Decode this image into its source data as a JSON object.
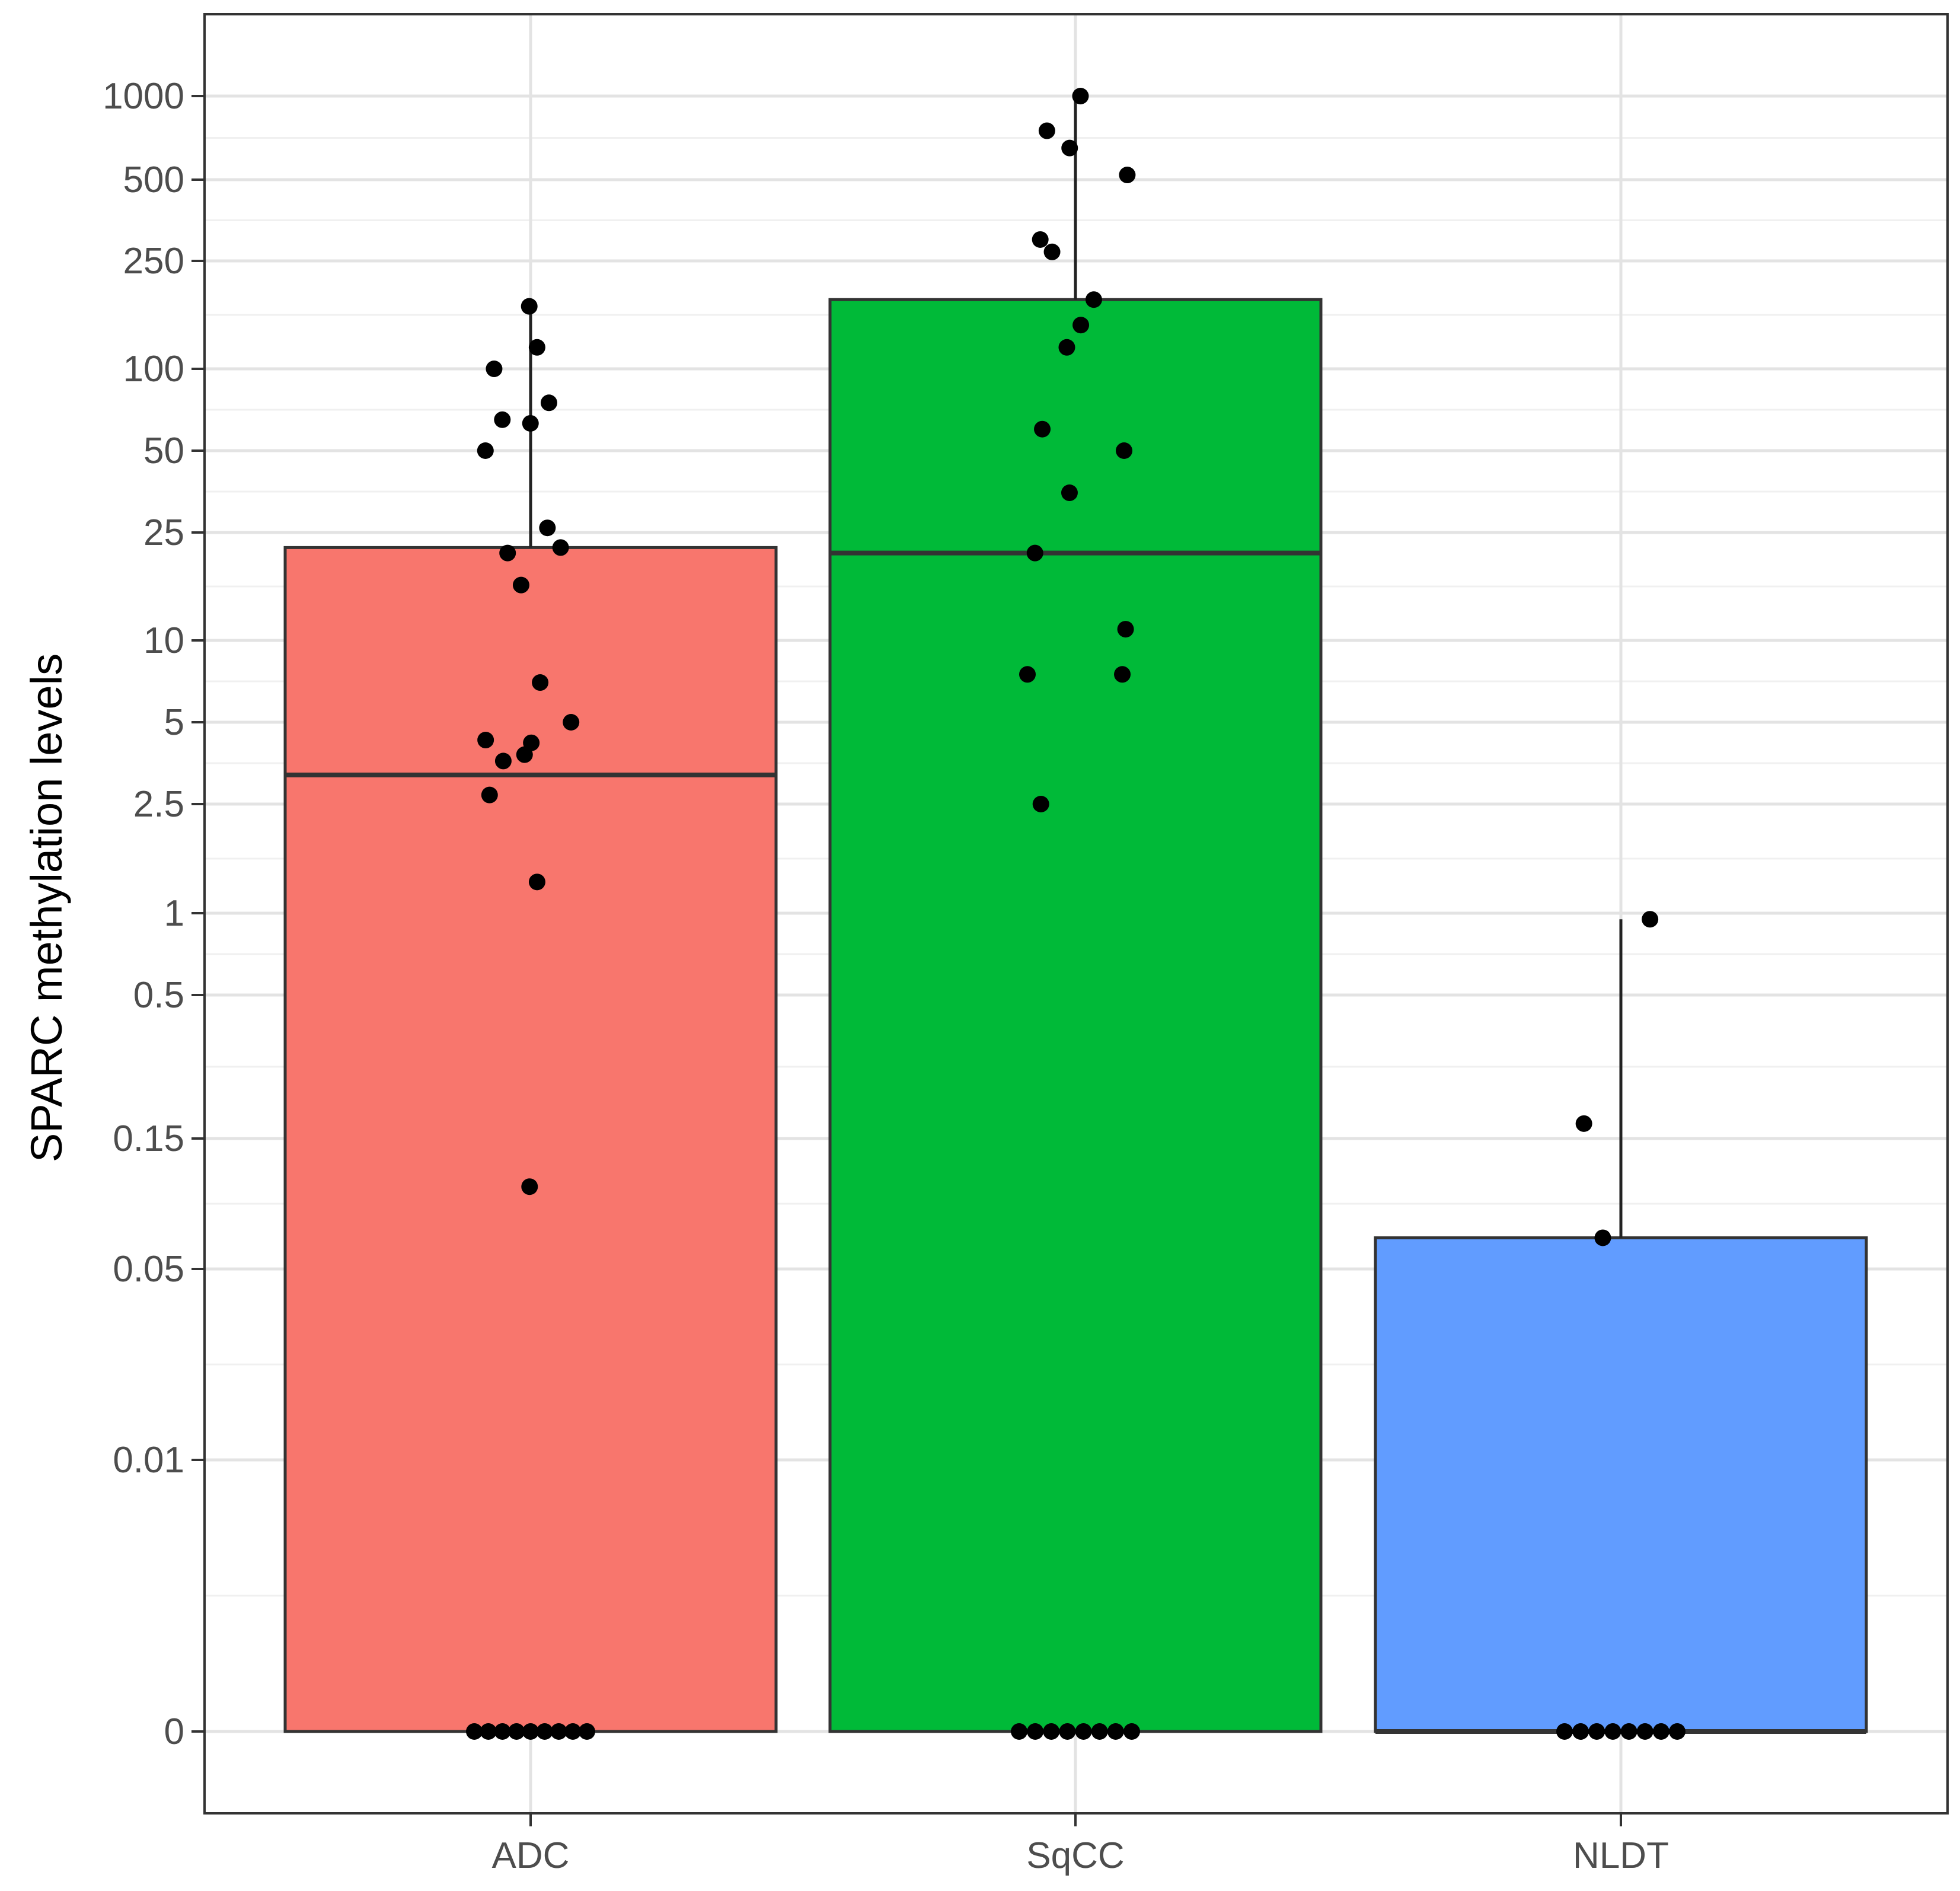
{
  "chart_data": {
    "type": "bar",
    "title": "",
    "xlabel": "",
    "ylabel": "SPARC methylation levels",
    "y_scale": "pseudo-log",
    "ylim": [
      0,
      1000
    ],
    "grid": true,
    "legend": "none",
    "y_ticks": [
      {
        "value": 0,
        "label": "0"
      },
      {
        "value": 0.01,
        "label": "0.01"
      },
      {
        "value": 0.05,
        "label": "0.05"
      },
      {
        "value": 0.15,
        "label": "0.15"
      },
      {
        "value": 0.5,
        "label": "0.5"
      },
      {
        "value": 1,
        "label": "1"
      },
      {
        "value": 2.5,
        "label": "2.5"
      },
      {
        "value": 5,
        "label": "5"
      },
      {
        "value": 10,
        "label": "10"
      },
      {
        "value": 25,
        "label": "25"
      },
      {
        "value": 50,
        "label": "50"
      },
      {
        "value": 100,
        "label": "100"
      },
      {
        "value": 250,
        "label": "250"
      },
      {
        "value": 500,
        "label": "500"
      },
      {
        "value": 1000,
        "label": "1000"
      }
    ],
    "categories": [
      "ADC",
      "SqCC",
      "NLDT"
    ],
    "colors": [
      "#F8766D",
      "#00BA38",
      "#619CFF"
    ],
    "values": [
      22,
      180,
      0.065
    ],
    "medians": [
      3.2,
      21,
      0
    ],
    "error_upper": [
      170,
      1000,
      0.95
    ],
    "points": [
      [
        0,
        0,
        0,
        0,
        0,
        0,
        0,
        0,
        0,
        0.1,
        1.3,
        2.7,
        3.6,
        3.8,
        4.2,
        4.3,
        5,
        7,
        16,
        21,
        22,
        26,
        50,
        63,
        65,
        75,
        100,
        120,
        170
      ],
      [
        0,
        0,
        0,
        0,
        0,
        0,
        0,
        0,
        2.5,
        7.5,
        7.5,
        11,
        21,
        35,
        50,
        60,
        120,
        145,
        180,
        270,
        300,
        520,
        650,
        750,
        1000
      ],
      [
        0,
        0,
        0,
        0,
        0,
        0,
        0,
        0,
        0.065,
        0.17,
        0.95
      ]
    ]
  }
}
